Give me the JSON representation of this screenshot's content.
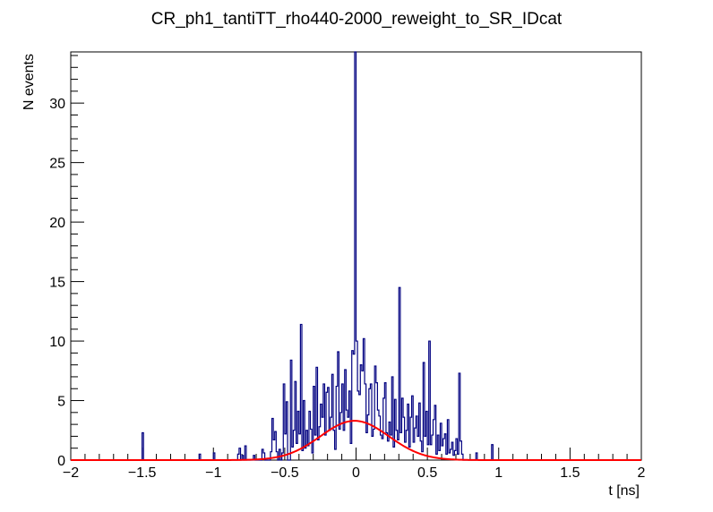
{
  "chart_data": {
    "type": "bar",
    "title": "CR_ph1_tantiTT_rho440-2000_reweight_to_SR_IDcat",
    "xlabel": "t [ns]",
    "ylabel": "N events",
    "xlim": [
      -2,
      2
    ],
    "ylim": [
      0,
      34.3
    ],
    "grid": false,
    "legend": "none",
    "x_major_ticks": [
      -2,
      -1.5,
      -1,
      -0.5,
      0,
      0.5,
      1,
      1.5,
      2
    ],
    "x_tick_labels": [
      "−2",
      "−1.5",
      "−1",
      "−0.5",
      "0",
      "0.5",
      "1",
      "1.5",
      "2"
    ],
    "y_major_ticks": [
      0,
      5,
      10,
      15,
      20,
      25,
      30
    ],
    "y_tick_labels": [
      "0",
      "5",
      "10",
      "15",
      "20",
      "25",
      "30"
    ],
    "bin_width": 0.01,
    "series": [
      {
        "name": "histogram",
        "style": "step",
        "color": "#000080",
        "bins": [
          [
            -1.5,
            2.3
          ],
          [
            -1.1,
            0.5
          ],
          [
            -1.0,
            0.6
          ],
          [
            -0.83,
            0.5
          ],
          [
            -0.82,
            1.0
          ],
          [
            -0.8,
            0.4
          ],
          [
            -0.78,
            1.2
          ],
          [
            -0.72,
            0.4
          ],
          [
            -0.66,
            0.9
          ],
          [
            -0.65,
            0.6
          ],
          [
            -0.6,
            0.7
          ],
          [
            -0.59,
            3.5
          ],
          [
            -0.58,
            1.7
          ],
          [
            -0.57,
            2.4
          ],
          [
            -0.56,
            0.7
          ],
          [
            -0.54,
            0.9
          ],
          [
            -0.52,
            0.6
          ],
          [
            -0.51,
            6.4
          ],
          [
            -0.5,
            2.2
          ],
          [
            -0.49,
            4.9
          ],
          [
            -0.46,
            8.4
          ],
          [
            -0.45,
            1.1
          ],
          [
            -0.44,
            2.5
          ],
          [
            -0.43,
            6.6
          ],
          [
            -0.42,
            1.4
          ],
          [
            -0.41,
            4.1
          ],
          [
            -0.4,
            2.2
          ],
          [
            -0.39,
            11.4
          ],
          [
            -0.38,
            0.8
          ],
          [
            -0.37,
            5.0
          ],
          [
            -0.36,
            1.0
          ],
          [
            -0.35,
            2.5
          ],
          [
            -0.34,
            1.2
          ],
          [
            -0.33,
            4.1
          ],
          [
            -0.32,
            2.6
          ],
          [
            -0.31,
            0.6
          ],
          [
            -0.3,
            6.2
          ],
          [
            -0.29,
            2.1
          ],
          [
            -0.28,
            7.8
          ],
          [
            -0.27,
            1.7
          ],
          [
            -0.26,
            2.8
          ],
          [
            -0.25,
            4.7
          ],
          [
            -0.24,
            3.6
          ],
          [
            -0.23,
            6.4
          ],
          [
            -0.22,
            2.1
          ],
          [
            -0.21,
            5.7
          ],
          [
            -0.2,
            6.1
          ],
          [
            -0.19,
            2.5
          ],
          [
            -0.18,
            3.6
          ],
          [
            -0.17,
            7.2
          ],
          [
            -0.16,
            2.5
          ],
          [
            -0.15,
            0.9
          ],
          [
            -0.14,
            6.2
          ],
          [
            -0.13,
            9.1
          ],
          [
            -0.12,
            2.6
          ],
          [
            -0.11,
            4.0
          ],
          [
            -0.1,
            6.4
          ],
          [
            -0.09,
            2.5
          ],
          [
            -0.08,
            7.6
          ],
          [
            -0.07,
            4.2
          ],
          [
            -0.06,
            3.6
          ],
          [
            -0.05,
            5.8
          ],
          [
            -0.04,
            1.4
          ],
          [
            -0.03,
            9.2
          ],
          [
            -0.02,
            8.9
          ],
          [
            -0.01,
            34.3
          ],
          [
            0.0,
            10.0
          ],
          [
            0.01,
            5.8
          ],
          [
            0.02,
            5.5
          ],
          [
            0.03,
            8.0
          ],
          [
            0.04,
            7.5
          ],
          [
            0.05,
            10.2
          ],
          [
            0.06,
            6.4
          ],
          [
            0.07,
            2.3
          ],
          [
            0.08,
            3.8
          ],
          [
            0.09,
            6.0
          ],
          [
            0.1,
            6.4
          ],
          [
            0.11,
            2.0
          ],
          [
            0.12,
            2.6
          ],
          [
            0.13,
            7.9
          ],
          [
            0.14,
            6.5
          ],
          [
            0.15,
            4.2
          ],
          [
            0.16,
            3.7
          ],
          [
            0.17,
            2.1
          ],
          [
            0.18,
            1.8
          ],
          [
            0.19,
            5.2
          ],
          [
            0.2,
            6.5
          ],
          [
            0.21,
            2.3
          ],
          [
            0.22,
            1.6
          ],
          [
            0.23,
            3.2
          ],
          [
            0.24,
            2.1
          ],
          [
            0.25,
            7.0
          ],
          [
            0.26,
            1.1
          ],
          [
            0.27,
            5.1
          ],
          [
            0.28,
            2.5
          ],
          [
            0.29,
            1.7
          ],
          [
            0.3,
            14.5
          ],
          [
            0.31,
            2.3
          ],
          [
            0.32,
            5.2
          ],
          [
            0.33,
            3.6
          ],
          [
            0.34,
            1.5
          ],
          [
            0.35,
            2.5
          ],
          [
            0.36,
            4.7
          ],
          [
            0.37,
            1.1
          ],
          [
            0.38,
            3.6
          ],
          [
            0.39,
            5.4
          ],
          [
            0.4,
            1.5
          ],
          [
            0.41,
            2.7
          ],
          [
            0.42,
            3.7
          ],
          [
            0.43,
            2.0
          ],
          [
            0.44,
            4.8
          ],
          [
            0.45,
            1.6
          ],
          [
            0.46,
            0.7
          ],
          [
            0.47,
            8.2
          ],
          [
            0.48,
            2.0
          ],
          [
            0.49,
            4.1
          ],
          [
            0.5,
            1.3
          ],
          [
            0.51,
            10.0
          ],
          [
            0.52,
            1.3
          ],
          [
            0.53,
            2.1
          ],
          [
            0.54,
            3.4
          ],
          [
            0.55,
            4.6
          ],
          [
            0.56,
            0.5
          ],
          [
            0.57,
            2.1
          ],
          [
            0.58,
            0.8
          ],
          [
            0.59,
            3.1
          ],
          [
            0.6,
            1.2
          ],
          [
            0.61,
            1.8
          ],
          [
            0.62,
            2.2
          ],
          [
            0.63,
            0.5
          ],
          [
            0.64,
            3.4
          ],
          [
            0.65,
            0.6
          ],
          [
            0.66,
            0.9
          ],
          [
            0.67,
            1.5
          ],
          [
            0.68,
            0.4
          ],
          [
            0.69,
            0.8
          ],
          [
            0.7,
            1.8
          ],
          [
            0.71,
            0.5
          ],
          [
            0.72,
            7.3
          ],
          [
            0.73,
            1.6
          ],
          [
            0.74,
            0.5
          ],
          [
            0.84,
            0.6
          ],
          [
            0.95,
            1.3
          ]
        ]
      },
      {
        "name": "gaussian fit",
        "style": "line",
        "color": "#ff0000",
        "function": "gaussian",
        "amplitude": 3.3,
        "mean": -0.01,
        "sigma": 0.24,
        "x_range": [
          -2,
          2
        ]
      }
    ]
  }
}
